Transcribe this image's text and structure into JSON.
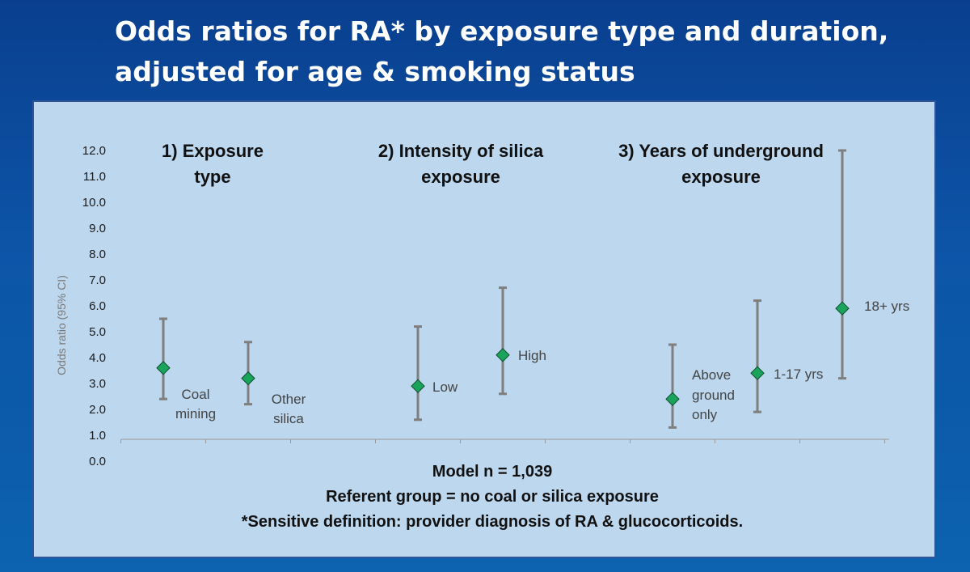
{
  "title": {
    "line1": "Odds ratios for RA* by exposure type and duration,",
    "line2": "adjusted for age & smoking status"
  },
  "colors": {
    "background": "#0b4f9e",
    "panel": "#bdd7ee",
    "panel_border": "#2f5597",
    "marker": "#1aa35a",
    "errorbar": "#7f7f7f"
  },
  "chart_data": {
    "type": "scatter",
    "ylabel": "Odds ratio (95% CI)",
    "ylim": [
      0,
      12
    ],
    "yticks": [
      "0.0",
      "1.0",
      "2.0",
      "3.0",
      "4.0",
      "5.0",
      "6.0",
      "7.0",
      "8.0",
      "9.0",
      "10.0",
      "11.0",
      "12.0"
    ],
    "groups": [
      {
        "heading": [
          "1)  Exposure",
          "type"
        ],
        "slots": [
          1,
          2
        ]
      },
      {
        "heading": [
          "2) Intensity of silica",
          "exposure"
        ],
        "slots": [
          4,
          5
        ]
      },
      {
        "heading": [
          "3) Years of underground",
          "exposure"
        ],
        "slots": [
          7,
          8,
          9
        ]
      }
    ],
    "points": [
      {
        "slot": 1,
        "value": 3.6,
        "lower": 2.4,
        "upper": 5.5,
        "label": [
          "Coal",
          "mining"
        ]
      },
      {
        "slot": 2,
        "value": 3.2,
        "lower": 2.2,
        "upper": 4.6,
        "label": [
          "Other",
          "silica"
        ]
      },
      {
        "slot": 4,
        "value": 2.9,
        "lower": 1.6,
        "upper": 5.2,
        "label": [
          "Low"
        ]
      },
      {
        "slot": 5,
        "value": 4.1,
        "lower": 2.6,
        "upper": 6.7,
        "label": [
          "High"
        ]
      },
      {
        "slot": 7,
        "value": 2.4,
        "lower": 1.3,
        "upper": 4.5,
        "label": [
          "Above",
          "ground",
          "only"
        ]
      },
      {
        "slot": 8,
        "value": 3.4,
        "lower": 1.9,
        "upper": 6.2,
        "label": [
          "1-17 yrs"
        ]
      },
      {
        "slot": 9,
        "value": 5.9,
        "lower": 3.2,
        "upper": 12.0,
        "label": [
          "18+ yrs"
        ]
      }
    ],
    "footnotes": [
      "Model n = 1,039",
      "Referent group = no coal or silica exposure",
      "*Sensitive definition:  provider diagnosis of RA & glucocorticoids."
    ]
  }
}
